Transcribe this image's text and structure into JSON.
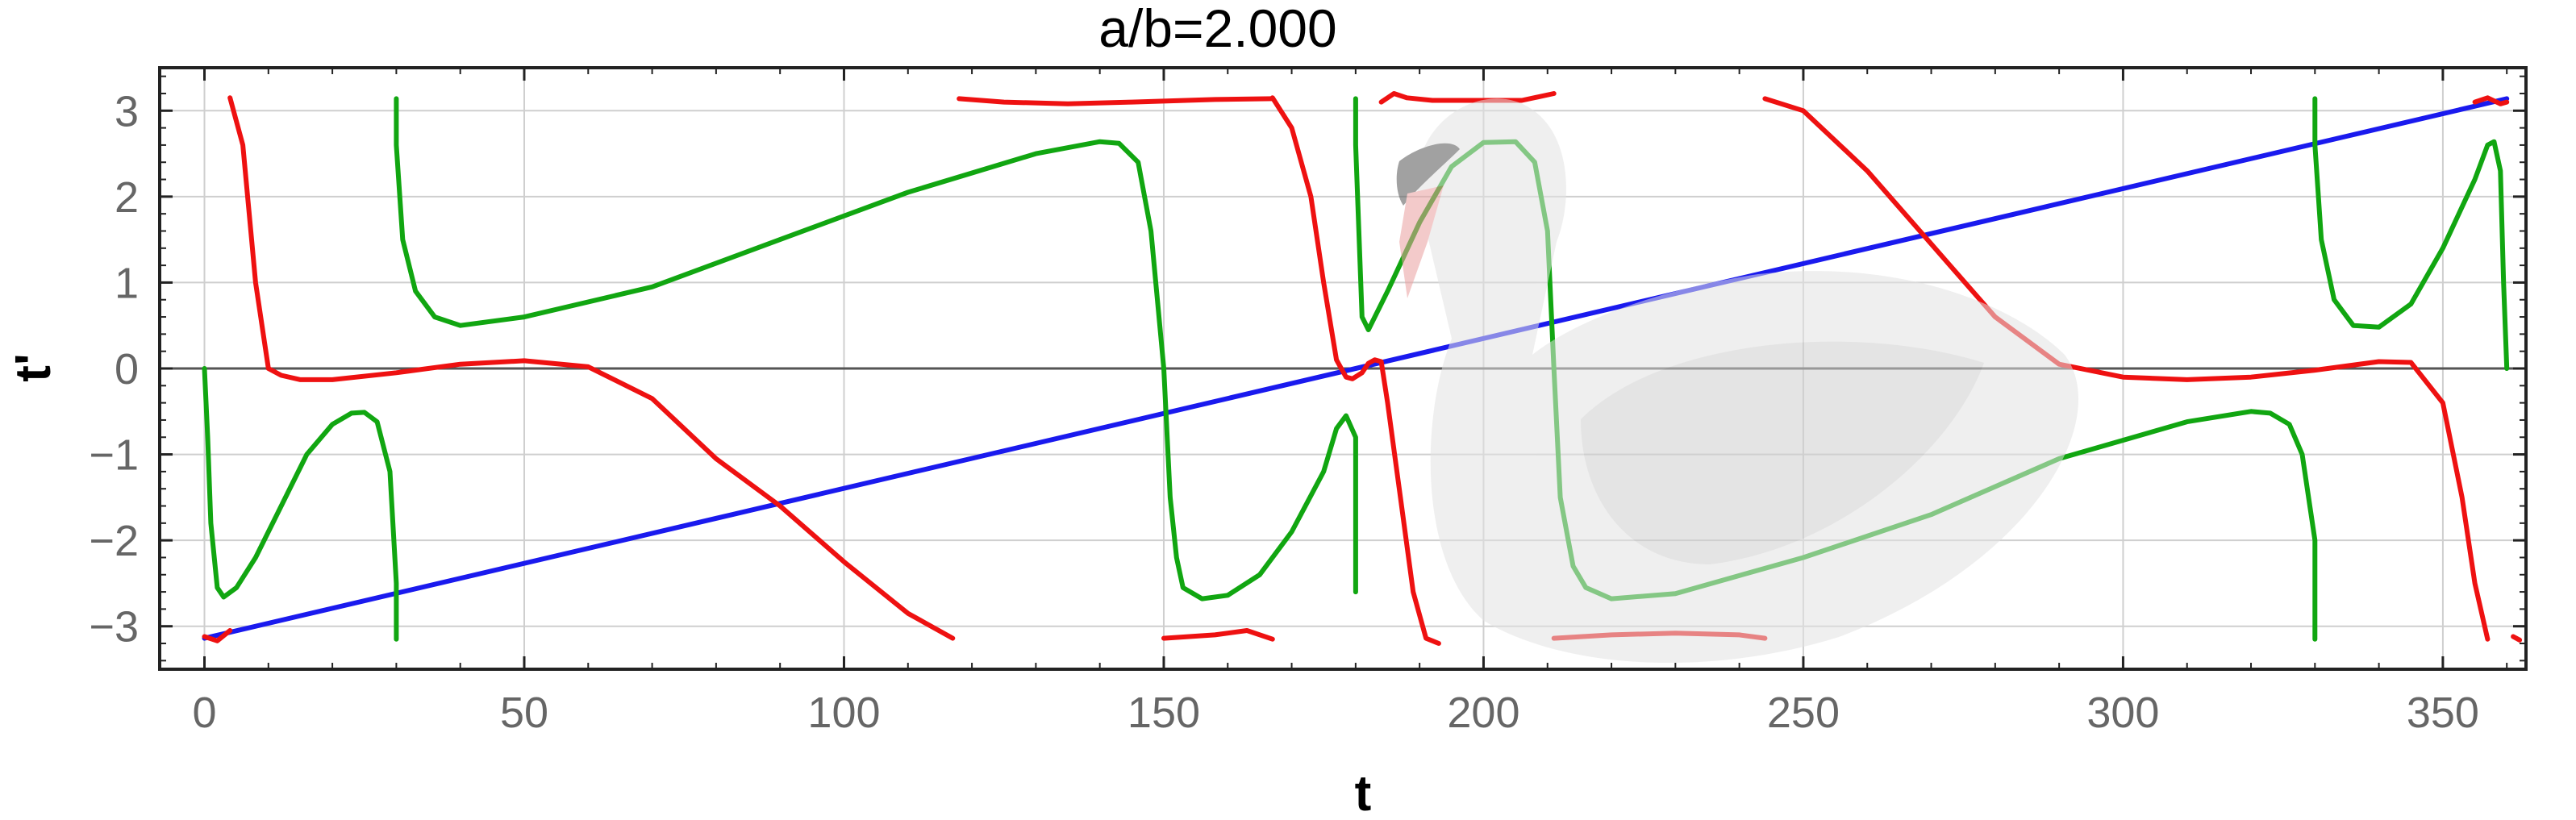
{
  "chart_data": {
    "type": "line",
    "title": "a/b=2.000",
    "xlabel": "t",
    "ylabel": "t'",
    "xlim": [
      -7,
      363
    ],
    "ylim": [
      -3.5,
      3.5
    ],
    "xticks": [
      0,
      50,
      100,
      150,
      200,
      250,
      300,
      350
    ],
    "xtick_labels": [
      "0",
      "50",
      "100",
      "150",
      "200",
      "250",
      "300",
      "350"
    ],
    "yticks": [
      3,
      2,
      1,
      0,
      -1,
      -2,
      -3
    ],
    "ytick_labels": [
      "3",
      "2",
      "1",
      "0",
      "−1",
      "−2",
      "−3"
    ],
    "grid": true,
    "colors": {
      "blue": "#1a1aee",
      "red": "#ee1111",
      "green": "#11a611"
    },
    "series": [
      {
        "color": "blue",
        "segments": [
          [
            [
              0,
              -3.14
            ],
            [
              360,
              3.14
            ]
          ]
        ]
      },
      {
        "color": "red",
        "segments": [
          [
            [
              0,
              -3.12
            ],
            [
              2,
              -3.17
            ],
            [
              4,
              -3.05
            ]
          ],
          [
            [
              4,
              3.15
            ],
            [
              6,
              2.6
            ],
            [
              8,
              1.0
            ],
            [
              10,
              0.0
            ],
            [
              12,
              -0.08
            ],
            [
              15,
              -0.13
            ],
            [
              20,
              -0.13
            ],
            [
              30,
              -0.05
            ],
            [
              40,
              0.05
            ],
            [
              50,
              0.09
            ],
            [
              60,
              0.02
            ],
            [
              70,
              -0.35
            ],
            [
              80,
              -1.05
            ],
            [
              90,
              -1.6
            ],
            [
              100,
              -2.25
            ],
            [
              110,
              -2.85
            ],
            [
              117,
              -3.14
            ]
          ],
          [
            [
              118,
              3.14
            ],
            [
              125,
              3.1
            ],
            [
              135,
              3.08
            ],
            [
              145,
              3.1
            ],
            [
              158,
              3.13
            ],
            [
              167,
              3.14
            ]
          ],
          [
            [
              150,
              -3.14
            ],
            [
              158,
              -3.1
            ],
            [
              163,
              -3.05
            ],
            [
              167,
              -3.15
            ]
          ],
          [
            [
              167,
              3.15
            ],
            [
              170,
              2.8
            ],
            [
              173,
              2.0
            ],
            [
              175,
              1.0
            ],
            [
              177,
              0.1
            ],
            [
              178.5,
              -0.1
            ],
            [
              179.5,
              -0.12
            ],
            [
              181,
              -0.05
            ],
            [
              182,
              0.06
            ],
            [
              183,
              0.1
            ],
            [
              184,
              0.08
            ],
            [
              185,
              -0.4
            ],
            [
              187,
              -1.5
            ],
            [
              189,
              -2.6
            ],
            [
              191,
              -3.14
            ],
            [
              193,
              -3.2
            ]
          ],
          [
            [
              184,
              3.1
            ],
            [
              186,
              3.2
            ],
            [
              188,
              3.15
            ],
            [
              192,
              3.12
            ],
            [
              200,
              3.12
            ],
            [
              206,
              3.12
            ],
            [
              211,
              3.2
            ]
          ],
          [
            [
              211,
              -3.14
            ],
            [
              220,
              -3.1
            ],
            [
              230,
              -3.08
            ],
            [
              240,
              -3.1
            ],
            [
              244,
              -3.14
            ]
          ],
          [
            [
              244,
              3.14
            ],
            [
              250,
              3.0
            ],
            [
              260,
              2.3
            ],
            [
              270,
              1.45
            ],
            [
              280,
              0.6
            ],
            [
              290,
              0.05
            ],
            [
              300,
              -0.1
            ],
            [
              310,
              -0.13
            ],
            [
              320,
              -0.1
            ],
            [
              330,
              -0.02
            ],
            [
              340,
              0.08
            ],
            [
              345,
              0.07
            ],
            [
              350,
              -0.4
            ],
            [
              353,
              -1.5
            ],
            [
              355,
              -2.5
            ],
            [
              357,
              -3.15
            ]
          ],
          [
            [
              355,
              3.1
            ],
            [
              357,
              3.15
            ],
            [
              359,
              3.08
            ],
            [
              360,
              3.1
            ]
          ],
          [
            [
              361,
              -3.12
            ],
            [
              362,
              -3.16
            ]
          ]
        ]
      },
      {
        "color": "green",
        "segments": [
          [
            [
              0,
              0.0
            ],
            [
              0.5,
              -0.8
            ],
            [
              1,
              -1.8
            ],
            [
              2,
              -2.55
            ],
            [
              3,
              -2.66
            ],
            [
              5,
              -2.55
            ],
            [
              8,
              -2.2
            ],
            [
              12,
              -1.6
            ],
            [
              16,
              -1.0
            ],
            [
              20,
              -0.65
            ],
            [
              23,
              -0.52
            ],
            [
              25,
              -0.51
            ],
            [
              27,
              -0.62
            ],
            [
              29,
              -1.2
            ],
            [
              30,
              -2.5
            ],
            [
              30,
              -3.15
            ]
          ],
          [
            [
              30,
              3.14
            ],
            [
              30,
              2.6
            ],
            [
              31,
              1.5
            ],
            [
              33,
              0.9
            ],
            [
              36,
              0.6
            ],
            [
              40,
              0.5
            ],
            [
              50,
              0.6
            ],
            [
              70,
              0.95
            ],
            [
              90,
              1.5
            ],
            [
              110,
              2.05
            ],
            [
              130,
              2.5
            ],
            [
              140,
              2.64
            ],
            [
              143,
              2.62
            ],
            [
              146,
              2.4
            ],
            [
              148,
              1.6
            ],
            [
              150,
              0.0
            ],
            [
              151,
              -1.5
            ],
            [
              152,
              -2.2
            ],
            [
              153,
              -2.55
            ],
            [
              156,
              -2.68
            ],
            [
              160,
              -2.64
            ],
            [
              165,
              -2.4
            ],
            [
              170,
              -1.9
            ],
            [
              175,
              -1.2
            ],
            [
              177,
              -0.7
            ],
            [
              178.5,
              -0.55
            ],
            [
              180,
              -0.8
            ],
            [
              180,
              -2.6
            ]
          ],
          [
            [
              180,
              3.14
            ],
            [
              180,
              2.6
            ],
            [
              181,
              0.6
            ],
            [
              182,
              0.45
            ],
            [
              185,
              0.9
            ],
            [
              190,
              1.7
            ],
            [
              195,
              2.35
            ],
            [
              200,
              2.63
            ],
            [
              205,
              2.64
            ],
            [
              208,
              2.4
            ],
            [
              210,
              1.6
            ],
            [
              211,
              0.0
            ],
            [
              212,
              -1.5
            ],
            [
              214,
              -2.3
            ],
            [
              216,
              -2.55
            ],
            [
              220,
              -2.68
            ],
            [
              230,
              -2.62
            ],
            [
              250,
              -2.2
            ],
            [
              270,
              -1.7
            ],
            [
              290,
              -1.05
            ],
            [
              310,
              -0.62
            ],
            [
              320,
              -0.5
            ],
            [
              323,
              -0.52
            ],
            [
              326,
              -0.65
            ],
            [
              328,
              -1.0
            ],
            [
              330,
              -2.0
            ],
            [
              330,
              -3.15
            ]
          ],
          [
            [
              330,
              3.14
            ],
            [
              330,
              2.6
            ],
            [
              331,
              1.5
            ],
            [
              333,
              0.8
            ],
            [
              336,
              0.5
            ],
            [
              340,
              0.48
            ],
            [
              345,
              0.75
            ],
            [
              350,
              1.4
            ],
            [
              355,
              2.2
            ],
            [
              357,
              2.6
            ],
            [
              358,
              2.64
            ],
            [
              359,
              2.3
            ],
            [
              359.5,
              1.0
            ],
            [
              360,
              0.0
            ]
          ]
        ]
      }
    ]
  }
}
